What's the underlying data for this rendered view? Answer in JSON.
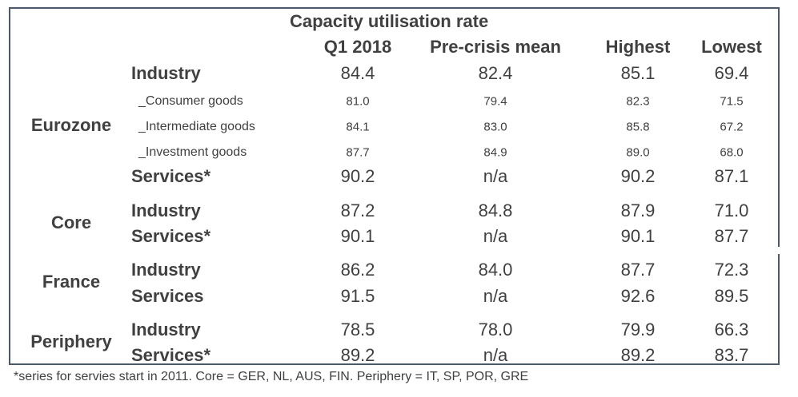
{
  "table": {
    "title": "Capacity utilisation rate",
    "columns": [
      "Q1 2018",
      "Pre-crisis mean",
      "Highest",
      "Lowest"
    ],
    "groups": [
      {
        "region": "Eurozone",
        "rows": [
          {
            "label": "Industry",
            "level": "main",
            "values": [
              "84.4",
              "82.4",
              "85.1",
              "69.4"
            ]
          },
          {
            "label": "_Consumer goods",
            "level": "sub",
            "values": [
              "81.0",
              "79.4",
              "82.3",
              "71.5"
            ]
          },
          {
            "label": "_Intermediate goods",
            "level": "sub",
            "values": [
              "84.1",
              "83.0",
              "85.8",
              "67.2"
            ]
          },
          {
            "label": "_Investment goods",
            "level": "sub",
            "values": [
              "87.7",
              "84.9",
              "89.0",
              "68.0"
            ]
          },
          {
            "label": "Services*",
            "level": "main",
            "values": [
              "90.2",
              "n/a",
              "90.2",
              "87.1"
            ]
          }
        ]
      },
      {
        "region": "Core",
        "rows": [
          {
            "label": "Industry",
            "level": "main",
            "values": [
              "87.2",
              "84.8",
              "87.9",
              "71.0"
            ]
          },
          {
            "label": "Services*",
            "level": "main",
            "values": [
              "90.1",
              "n/a",
              "90.1",
              "87.7"
            ]
          }
        ]
      },
      {
        "region": "France",
        "rows": [
          {
            "label": "Industry",
            "level": "main",
            "values": [
              "86.2",
              "84.0",
              "87.7",
              "72.3"
            ]
          },
          {
            "label": "Services",
            "level": "main",
            "values": [
              "91.5",
              "n/a",
              "92.6",
              "89.5"
            ]
          }
        ]
      },
      {
        "region": "Periphery",
        "rows": [
          {
            "label": "Industry",
            "level": "main",
            "values": [
              "78.5",
              "78.0",
              "79.9",
              "66.3"
            ]
          },
          {
            "label": "Services*",
            "level": "main",
            "values": [
              "89.2",
              "n/a",
              "89.2",
              "83.7"
            ]
          }
        ]
      }
    ],
    "footnote": "*series for servies start in 2011. Core = GER, NL, AUS, FIN. Periphery = IT, SP, POR, GRE"
  }
}
